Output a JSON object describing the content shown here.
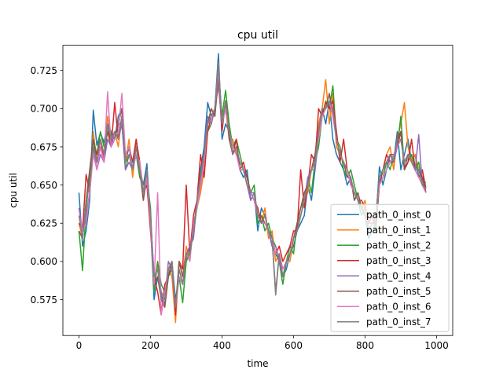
{
  "chart_data": {
    "type": "line",
    "title": "cpu util",
    "xlabel": "time",
    "ylabel": "cpu util",
    "xlim": [
      -45,
      1045
    ],
    "ylim": [
      0.5515,
      0.7415
    ],
    "xticks": [
      0,
      200,
      400,
      600,
      800,
      1000
    ],
    "yticks": [
      0.575,
      0.6,
      0.625,
      0.65,
      0.675,
      0.7,
      0.725
    ],
    "ytick_labels": [
      "0.575",
      "0.600",
      "0.625",
      "0.650",
      "0.675",
      "0.700",
      "0.725"
    ],
    "grid": false,
    "legend_position": "lower right",
    "x": [
      0,
      10,
      20,
      30,
      40,
      50,
      60,
      70,
      80,
      90,
      100,
      110,
      120,
      130,
      140,
      150,
      160,
      170,
      180,
      190,
      200,
      210,
      220,
      230,
      240,
      250,
      260,
      270,
      280,
      290,
      300,
      310,
      320,
      330,
      340,
      350,
      360,
      370,
      380,
      390,
      400,
      410,
      420,
      430,
      440,
      450,
      460,
      470,
      480,
      490,
      500,
      510,
      520,
      530,
      540,
      550,
      560,
      570,
      580,
      590,
      600,
      610,
      620,
      630,
      640,
      650,
      660,
      670,
      680,
      690,
      700,
      710,
      720,
      730,
      740,
      750,
      760,
      770,
      780,
      790,
      800,
      810,
      820,
      830,
      840,
      850,
      860,
      870,
      880,
      890,
      900,
      910,
      920,
      930,
      940,
      950,
      960,
      970
    ],
    "series": [
      {
        "name": "path_0_inst_0",
        "color": "#1f77b4",
        "values": [
          0.645,
          0.61,
          0.62,
          0.64,
          0.699,
          0.676,
          0.684,
          0.678,
          0.69,
          0.683,
          0.68,
          0.695,
          0.7,
          0.665,
          0.675,
          0.66,
          0.68,
          0.66,
          0.65,
          0.664,
          0.625,
          0.575,
          0.59,
          0.578,
          0.572,
          0.59,
          0.6,
          0.575,
          0.59,
          0.585,
          0.6,
          0.61,
          0.615,
          0.64,
          0.66,
          0.675,
          0.704,
          0.695,
          0.7,
          0.736,
          0.68,
          0.69,
          0.685,
          0.67,
          0.675,
          0.66,
          0.655,
          0.66,
          0.64,
          0.645,
          0.62,
          0.635,
          0.63,
          0.62,
          0.61,
          0.605,
          0.6,
          0.59,
          0.595,
          0.605,
          0.61,
          0.62,
          0.625,
          0.63,
          0.65,
          0.64,
          0.66,
          0.68,
          0.7,
          0.69,
          0.705,
          0.68,
          0.67,
          0.665,
          0.66,
          0.65,
          0.655,
          0.64,
          0.645,
          0.635,
          0.63,
          0.615,
          0.62,
          0.625,
          0.662,
          0.65,
          0.66,
          0.67,
          0.665,
          0.685,
          0.66,
          0.67,
          0.68,
          0.665,
          0.67,
          0.655,
          0.66,
          0.648
        ]
      },
      {
        "name": "path_0_inst_1",
        "color": "#ff7f0e",
        "values": [
          0.625,
          0.615,
          0.64,
          0.65,
          0.685,
          0.665,
          0.68,
          0.67,
          0.695,
          0.68,
          0.685,
          0.675,
          0.695,
          0.665,
          0.68,
          0.655,
          0.675,
          0.665,
          0.645,
          0.66,
          0.63,
          0.585,
          0.6,
          0.575,
          0.575,
          0.595,
          0.59,
          0.56,
          0.6,
          0.59,
          0.61,
          0.6,
          0.625,
          0.635,
          0.645,
          0.66,
          0.69,
          0.7,
          0.695,
          0.73,
          0.69,
          0.7,
          0.68,
          0.68,
          0.67,
          0.665,
          0.66,
          0.655,
          0.645,
          0.64,
          0.63,
          0.625,
          0.635,
          0.615,
          0.62,
          0.6,
          0.605,
          0.595,
          0.6,
          0.6,
          0.615,
          0.625,
          0.63,
          0.64,
          0.645,
          0.66,
          0.67,
          0.69,
          0.7,
          0.719,
          0.69,
          0.71,
          0.675,
          0.67,
          0.665,
          0.66,
          0.65,
          0.645,
          0.64,
          0.635,
          0.64,
          0.62,
          0.625,
          0.63,
          0.655,
          0.66,
          0.67,
          0.675,
          0.66,
          0.68,
          0.69,
          0.704,
          0.675,
          0.665,
          0.67,
          0.66,
          0.655,
          0.65
        ]
      },
      {
        "name": "path_0_inst_2",
        "color": "#2ca02c",
        "values": [
          0.62,
          0.594,
          0.635,
          0.655,
          0.68,
          0.67,
          0.685,
          0.675,
          0.69,
          0.685,
          0.68,
          0.69,
          0.69,
          0.66,
          0.67,
          0.665,
          0.67,
          0.655,
          0.65,
          0.655,
          0.635,
          0.58,
          0.6,
          0.585,
          0.58,
          0.59,
          0.595,
          0.57,
          0.59,
          0.573,
          0.6,
          0.605,
          0.62,
          0.635,
          0.65,
          0.665,
          0.685,
          0.69,
          0.7,
          0.725,
          0.695,
          0.712,
          0.69,
          0.675,
          0.68,
          0.67,
          0.66,
          0.65,
          0.645,
          0.65,
          0.625,
          0.63,
          0.62,
          0.625,
          0.615,
          0.61,
          0.6,
          0.585,
          0.6,
          0.61,
          0.605,
          0.625,
          0.635,
          0.64,
          0.655,
          0.645,
          0.665,
          0.675,
          0.695,
          0.705,
          0.7,
          0.715,
          0.68,
          0.675,
          0.66,
          0.655,
          0.66,
          0.65,
          0.64,
          0.63,
          0.635,
          0.625,
          0.63,
          0.62,
          0.65,
          0.655,
          0.665,
          0.66,
          0.67,
          0.675,
          0.695,
          0.66,
          0.665,
          0.67,
          0.66,
          0.665,
          0.65,
          0.652
        ]
      },
      {
        "name": "path_0_inst_3",
        "color": "#d62728",
        "values": [
          0.625,
          0.62,
          0.657,
          0.645,
          0.675,
          0.67,
          0.68,
          0.665,
          0.69,
          0.675,
          0.704,
          0.68,
          0.695,
          0.67,
          0.675,
          0.665,
          0.68,
          0.665,
          0.645,
          0.65,
          0.62,
          0.59,
          0.58,
          0.565,
          0.585,
          0.59,
          0.6,
          0.565,
          0.6,
          0.595,
          0.65,
          0.605,
          0.63,
          0.64,
          0.67,
          0.655,
          0.685,
          0.695,
          0.7,
          0.72,
          0.685,
          0.705,
          0.685,
          0.67,
          0.68,
          0.66,
          0.665,
          0.655,
          0.645,
          0.64,
          0.635,
          0.625,
          0.63,
          0.62,
          0.615,
          0.605,
          0.61,
          0.6,
          0.605,
          0.61,
          0.62,
          0.62,
          0.66,
          0.635,
          0.65,
          0.67,
          0.665,
          0.7,
          0.695,
          0.704,
          0.7,
          0.705,
          0.685,
          0.665,
          0.68,
          0.66,
          0.65,
          0.645,
          0.64,
          0.64,
          0.635,
          0.625,
          0.63,
          0.625,
          0.65,
          0.66,
          0.67,
          0.665,
          0.665,
          0.68,
          0.685,
          0.66,
          0.665,
          0.68,
          0.66,
          0.655,
          0.66,
          0.645
        ]
      },
      {
        "name": "path_0_inst_4",
        "color": "#9467bd",
        "values": [
          0.635,
          0.62,
          0.63,
          0.645,
          0.675,
          0.66,
          0.67,
          0.665,
          0.68,
          0.675,
          0.685,
          0.68,
          0.69,
          0.66,
          0.665,
          0.66,
          0.67,
          0.66,
          0.64,
          0.655,
          0.63,
          0.59,
          0.595,
          0.58,
          0.575,
          0.6,
          0.595,
          0.57,
          0.595,
          0.585,
          0.605,
          0.61,
          0.615,
          0.64,
          0.655,
          0.67,
          0.695,
          0.69,
          0.7,
          0.715,
          0.69,
          0.7,
          0.685,
          0.675,
          0.67,
          0.665,
          0.66,
          0.65,
          0.64,
          0.645,
          0.63,
          0.625,
          0.625,
          0.62,
          0.61,
          0.61,
          0.6,
          0.59,
          0.6,
          0.605,
          0.615,
          0.62,
          0.63,
          0.64,
          0.655,
          0.66,
          0.66,
          0.685,
          0.7,
          0.7,
          0.705,
          0.7,
          0.68,
          0.67,
          0.665,
          0.66,
          0.65,
          0.645,
          0.64,
          0.635,
          0.63,
          0.625,
          0.625,
          0.63,
          0.655,
          0.66,
          0.665,
          0.67,
          0.665,
          0.675,
          0.68,
          0.665,
          0.67,
          0.665,
          0.66,
          0.683,
          0.65,
          0.645
        ]
      },
      {
        "name": "path_0_inst_5",
        "color": "#8c564b",
        "values": [
          0.62,
          0.615,
          0.64,
          0.66,
          0.68,
          0.665,
          0.675,
          0.67,
          0.685,
          0.675,
          0.68,
          0.69,
          0.7,
          0.665,
          0.67,
          0.665,
          0.675,
          0.66,
          0.64,
          0.66,
          0.625,
          0.585,
          0.59,
          0.575,
          0.57,
          0.59,
          0.6,
          0.57,
          0.6,
          0.59,
          0.605,
          0.605,
          0.62,
          0.64,
          0.655,
          0.67,
          0.69,
          0.7,
          0.695,
          0.72,
          0.69,
          0.705,
          0.68,
          0.67,
          0.675,
          0.66,
          0.66,
          0.655,
          0.645,
          0.64,
          0.63,
          0.63,
          0.625,
          0.62,
          0.615,
          0.58,
          0.605,
          0.59,
          0.6,
          0.605,
          0.615,
          0.625,
          0.635,
          0.645,
          0.65,
          0.66,
          0.67,
          0.685,
          0.7,
          0.7,
          0.71,
          0.695,
          0.68,
          0.67,
          0.665,
          0.655,
          0.655,
          0.64,
          0.645,
          0.635,
          0.63,
          0.62,
          0.625,
          0.625,
          0.65,
          0.66,
          0.665,
          0.67,
          0.67,
          0.675,
          0.685,
          0.66,
          0.67,
          0.665,
          0.66,
          0.66,
          0.655,
          0.645
        ]
      },
      {
        "name": "path_0_inst_6",
        "color": "#e377c2",
        "values": [
          0.63,
          0.62,
          0.625,
          0.645,
          0.67,
          0.66,
          0.675,
          0.665,
          0.711,
          0.675,
          0.68,
          0.685,
          0.71,
          0.67,
          0.675,
          0.66,
          0.67,
          0.665,
          0.645,
          0.655,
          0.625,
          0.585,
          0.645,
          0.565,
          0.58,
          0.595,
          0.6,
          0.57,
          0.59,
          0.585,
          0.605,
          0.6,
          0.625,
          0.635,
          0.65,
          0.665,
          0.69,
          0.695,
          0.7,
          0.725,
          0.69,
          0.7,
          0.685,
          0.675,
          0.67,
          0.66,
          0.66,
          0.65,
          0.645,
          0.64,
          0.63,
          0.625,
          0.625,
          0.62,
          0.615,
          0.605,
          0.605,
          0.595,
          0.6,
          0.605,
          0.615,
          0.62,
          0.63,
          0.64,
          0.65,
          0.66,
          0.665,
          0.68,
          0.695,
          0.7,
          0.705,
          0.695,
          0.68,
          0.67,
          0.665,
          0.66,
          0.65,
          0.645,
          0.64,
          0.635,
          0.635,
          0.62,
          0.625,
          0.63,
          0.65,
          0.655,
          0.66,
          0.665,
          0.67,
          0.675,
          0.68,
          0.665,
          0.67,
          0.665,
          0.66,
          0.655,
          0.65,
          0.645
        ]
      },
      {
        "name": "path_0_inst_7",
        "color": "#7f7f7f",
        "values": [
          0.63,
          0.615,
          0.64,
          0.65,
          0.675,
          0.665,
          0.68,
          0.67,
          0.69,
          0.68,
          0.685,
          0.68,
          0.695,
          0.665,
          0.67,
          0.66,
          0.675,
          0.66,
          0.645,
          0.66,
          0.63,
          0.59,
          0.595,
          0.575,
          0.575,
          0.595,
          0.6,
          0.57,
          0.595,
          0.585,
          0.605,
          0.605,
          0.62,
          0.64,
          0.655,
          0.67,
          0.69,
          0.695,
          0.7,
          0.73,
          0.69,
          0.705,
          0.685,
          0.67,
          0.675,
          0.665,
          0.66,
          0.65,
          0.645,
          0.645,
          0.63,
          0.625,
          0.63,
          0.62,
          0.615,
          0.578,
          0.605,
          0.59,
          0.6,
          0.605,
          0.615,
          0.62,
          0.63,
          0.64,
          0.65,
          0.66,
          0.665,
          0.685,
          0.7,
          0.7,
          0.705,
          0.7,
          0.68,
          0.67,
          0.665,
          0.66,
          0.655,
          0.645,
          0.64,
          0.635,
          0.635,
          0.62,
          0.625,
          0.63,
          0.655,
          0.66,
          0.665,
          0.67,
          0.665,
          0.68,
          0.68,
          0.665,
          0.67,
          0.665,
          0.66,
          0.66,
          0.65,
          0.648
        ]
      }
    ]
  }
}
